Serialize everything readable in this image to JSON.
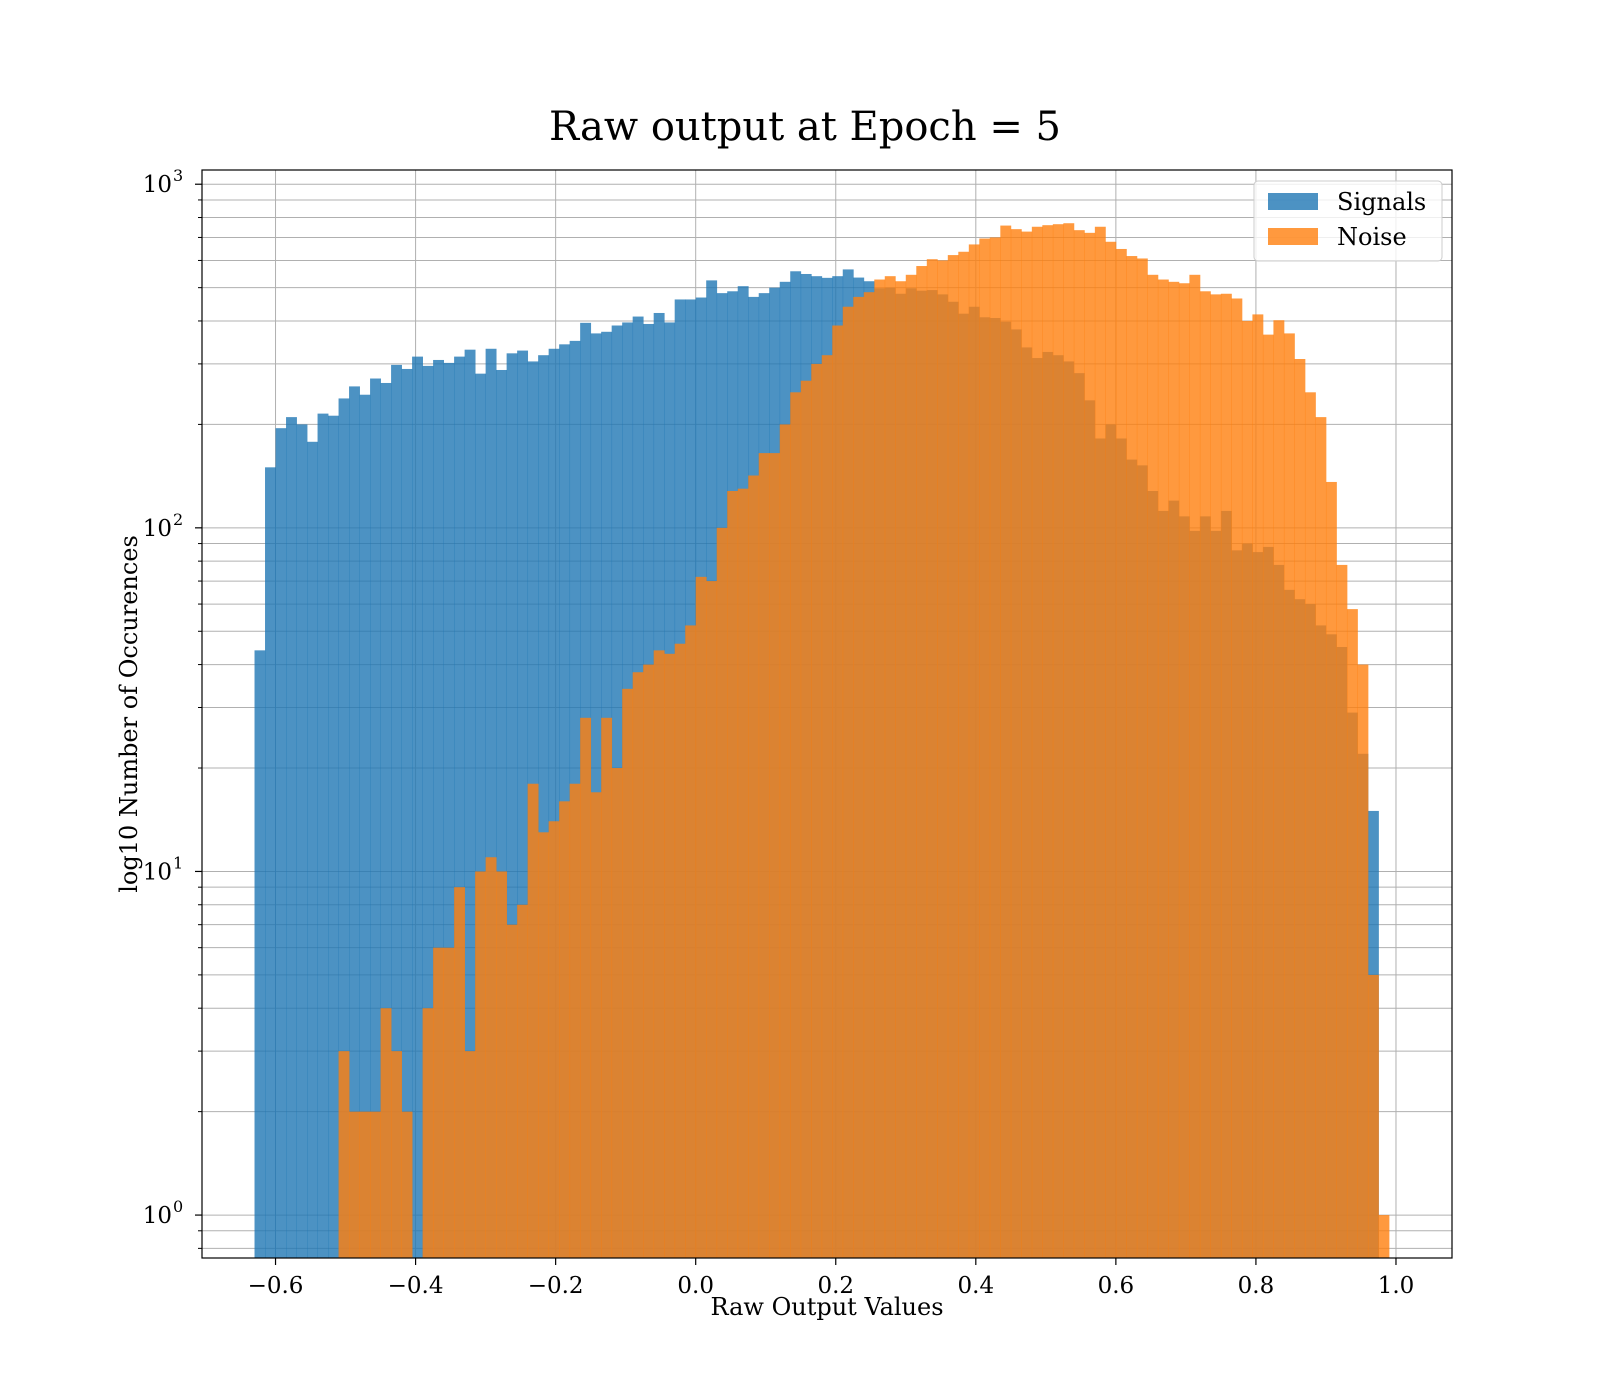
{
  "chart_data": {
    "type": "bar",
    "title": "Raw output at Epoch = 5",
    "xlabel": "Raw Output Values",
    "ylabel": "log10 Number of Occurences",
    "xlim": [
      -0.705,
      1.08
    ],
    "ylim": [
      0.75,
      1100
    ],
    "yscale": "log",
    "grid": true,
    "legend_position": "top-right",
    "bin_width": 0.015,
    "x_ticks": [
      "−0.6",
      "−0.4",
      "−0.2",
      "0.0",
      "0.2",
      "0.4",
      "0.6",
      "0.8",
      "1.0"
    ],
    "x_tick_values": [
      -0.6,
      -0.4,
      -0.2,
      0.0,
      0.2,
      0.4,
      0.6,
      0.8,
      1.0
    ],
    "y_ticks": [
      {
        "value": 1,
        "base": "10",
        "exp": "0"
      },
      {
        "value": 10,
        "base": "10",
        "exp": "1"
      },
      {
        "value": 100,
        "base": "10",
        "exp": "2"
      },
      {
        "value": 1000,
        "base": "10",
        "exp": "3"
      }
    ],
    "series": [
      {
        "name": "Signals",
        "color": "#1f77b4",
        "opacity": 0.8,
        "bins": [
          [
            -0.63,
            44
          ],
          [
            -0.615,
            150
          ],
          [
            -0.6,
            195
          ],
          [
            -0.585,
            210
          ],
          [
            -0.57,
            200
          ],
          [
            -0.555,
            178
          ],
          [
            -0.54,
            215
          ],
          [
            -0.525,
            212
          ],
          [
            -0.51,
            238
          ],
          [
            -0.495,
            258
          ],
          [
            -0.48,
            244
          ],
          [
            -0.465,
            272
          ],
          [
            -0.45,
            264
          ],
          [
            -0.435,
            298
          ],
          [
            -0.42,
            290
          ],
          [
            -0.405,
            315
          ],
          [
            -0.39,
            296
          ],
          [
            -0.375,
            308
          ],
          [
            -0.36,
            302
          ],
          [
            -0.345,
            315
          ],
          [
            -0.33,
            330
          ],
          [
            -0.315,
            281
          ],
          [
            -0.3,
            332
          ],
          [
            -0.285,
            288
          ],
          [
            -0.27,
            322
          ],
          [
            -0.255,
            328
          ],
          [
            -0.24,
            305
          ],
          [
            -0.225,
            318
          ],
          [
            -0.21,
            332
          ],
          [
            -0.195,
            342
          ],
          [
            -0.18,
            350
          ],
          [
            -0.165,
            395
          ],
          [
            -0.15,
            368
          ],
          [
            -0.135,
            372
          ],
          [
            -0.12,
            388
          ],
          [
            -0.105,
            396
          ],
          [
            -0.09,
            412
          ],
          [
            -0.075,
            392
          ],
          [
            -0.06,
            422
          ],
          [
            -0.045,
            396
          ],
          [
            -0.03,
            462
          ],
          [
            -0.015,
            462
          ],
          [
            0.0,
            468
          ],
          [
            0.015,
            525
          ],
          [
            0.03,
            482
          ],
          [
            0.045,
            488
          ],
          [
            0.06,
            505
          ],
          [
            0.075,
            470
          ],
          [
            0.09,
            482
          ],
          [
            0.105,
            500
          ],
          [
            0.12,
            520
          ],
          [
            0.135,
            558
          ],
          [
            0.15,
            548
          ],
          [
            0.165,
            540
          ],
          [
            0.18,
            534
          ],
          [
            0.195,
            540
          ],
          [
            0.21,
            565
          ],
          [
            0.225,
            535
          ],
          [
            0.24,
            522
          ],
          [
            0.255,
            498
          ],
          [
            0.27,
            500
          ],
          [
            0.285,
            480
          ],
          [
            0.3,
            498
          ],
          [
            0.315,
            490
          ],
          [
            0.33,
            492
          ],
          [
            0.345,
            478
          ],
          [
            0.36,
            455
          ],
          [
            0.375,
            420
          ],
          [
            0.39,
            440
          ],
          [
            0.405,
            410
          ],
          [
            0.42,
            408
          ],
          [
            0.435,
            398
          ],
          [
            0.45,
            378
          ],
          [
            0.465,
            335
          ],
          [
            0.48,
            312
          ],
          [
            0.495,
            325
          ],
          [
            0.51,
            318
          ],
          [
            0.525,
            305
          ],
          [
            0.54,
            282
          ],
          [
            0.555,
            235
          ],
          [
            0.57,
            182
          ],
          [
            0.585,
            200
          ],
          [
            0.6,
            182
          ],
          [
            0.615,
            158
          ],
          [
            0.63,
            152
          ],
          [
            0.645,
            128
          ],
          [
            0.66,
            112
          ],
          [
            0.675,
            120
          ],
          [
            0.69,
            108
          ],
          [
            0.705,
            98
          ],
          [
            0.72,
            108
          ],
          [
            0.735,
            98
          ],
          [
            0.75,
            112
          ],
          [
            0.765,
            86
          ],
          [
            0.78,
            90
          ],
          [
            0.795,
            85
          ],
          [
            0.81,
            88
          ],
          [
            0.825,
            78
          ],
          [
            0.84,
            66
          ],
          [
            0.855,
            62
          ],
          [
            0.87,
            60
          ],
          [
            0.885,
            52
          ],
          [
            0.9,
            49
          ],
          [
            0.915,
            45
          ],
          [
            0.93,
            29
          ],
          [
            0.945,
            22
          ],
          [
            0.96,
            15
          ]
        ]
      },
      {
        "name": "Noise",
        "color": "#ff7f0e",
        "opacity": 0.8,
        "bins": [
          [
            -0.51,
            3
          ],
          [
            -0.495,
            2
          ],
          [
            -0.48,
            2
          ],
          [
            -0.465,
            2
          ],
          [
            -0.45,
            4
          ],
          [
            -0.435,
            3
          ],
          [
            -0.42,
            2
          ],
          [
            -0.39,
            4
          ],
          [
            -0.375,
            6
          ],
          [
            -0.36,
            6
          ],
          [
            -0.345,
            9
          ],
          [
            -0.33,
            3
          ],
          [
            -0.315,
            10
          ],
          [
            -0.3,
            11
          ],
          [
            -0.285,
            10
          ],
          [
            -0.27,
            7
          ],
          [
            -0.255,
            8
          ],
          [
            -0.24,
            18
          ],
          [
            -0.225,
            13
          ],
          [
            -0.21,
            14
          ],
          [
            -0.195,
            16
          ],
          [
            -0.18,
            18
          ],
          [
            -0.165,
            28
          ],
          [
            -0.15,
            17
          ],
          [
            -0.135,
            28
          ],
          [
            -0.12,
            20
          ],
          [
            -0.105,
            34
          ],
          [
            -0.09,
            38
          ],
          [
            -0.075,
            40
          ],
          [
            -0.06,
            44
          ],
          [
            -0.045,
            43
          ],
          [
            -0.03,
            46
          ],
          [
            -0.015,
            52
          ],
          [
            0.0,
            72
          ],
          [
            0.015,
            70
          ],
          [
            0.03,
            100
          ],
          [
            0.045,
            128
          ],
          [
            0.06,
            130
          ],
          [
            0.075,
            142
          ],
          [
            0.09,
            165
          ],
          [
            0.105,
            165
          ],
          [
            0.12,
            200
          ],
          [
            0.135,
            248
          ],
          [
            0.15,
            268
          ],
          [
            0.165,
            300
          ],
          [
            0.18,
            318
          ],
          [
            0.195,
            388
          ],
          [
            0.21,
            440
          ],
          [
            0.225,
            470
          ],
          [
            0.24,
            485
          ],
          [
            0.255,
            528
          ],
          [
            0.27,
            540
          ],
          [
            0.285,
            522
          ],
          [
            0.3,
            545
          ],
          [
            0.315,
            578
          ],
          [
            0.33,
            605
          ],
          [
            0.345,
            600
          ],
          [
            0.36,
            622
          ],
          [
            0.375,
            636
          ],
          [
            0.39,
            668
          ],
          [
            0.405,
            695
          ],
          [
            0.42,
            700
          ],
          [
            0.435,
            758
          ],
          [
            0.45,
            740
          ],
          [
            0.465,
            728
          ],
          [
            0.48,
            752
          ],
          [
            0.495,
            760
          ],
          [
            0.51,
            765
          ],
          [
            0.525,
            770
          ],
          [
            0.54,
            735
          ],
          [
            0.555,
            722
          ],
          [
            0.57,
            752
          ],
          [
            0.585,
            680
          ],
          [
            0.6,
            648
          ],
          [
            0.615,
            618
          ],
          [
            0.63,
            608
          ],
          [
            0.645,
            545
          ],
          [
            0.66,
            528
          ],
          [
            0.675,
            520
          ],
          [
            0.69,
            515
          ],
          [
            0.705,
            545
          ],
          [
            0.72,
            488
          ],
          [
            0.735,
            478
          ],
          [
            0.75,
            480
          ],
          [
            0.765,
            465
          ],
          [
            0.78,
            400
          ],
          [
            0.795,
            418
          ],
          [
            0.81,
            365
          ],
          [
            0.825,
            402
          ],
          [
            0.84,
            368
          ],
          [
            0.855,
            310
          ],
          [
            0.87,
            248
          ],
          [
            0.885,
            210
          ],
          [
            0.9,
            136
          ],
          [
            0.915,
            78
          ],
          [
            0.93,
            58
          ],
          [
            0.945,
            40
          ],
          [
            0.96,
            5
          ],
          [
            0.975,
            1
          ]
        ]
      }
    ]
  }
}
